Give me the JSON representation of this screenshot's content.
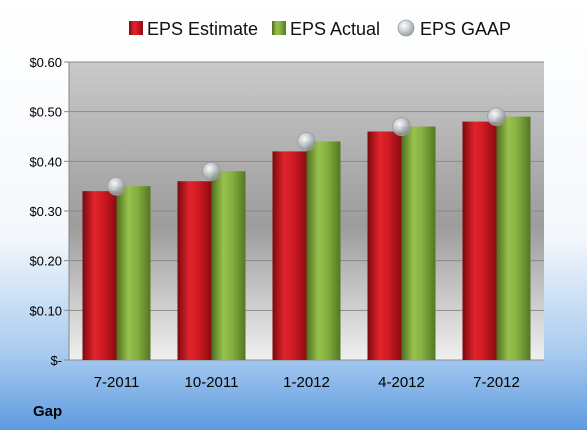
{
  "company": "Gap",
  "chart_data": {
    "type": "bar",
    "categories": [
      "7-2011",
      "10-2011",
      "1-2012",
      "4-2012",
      "7-2012"
    ],
    "series": [
      {
        "name": "EPS Estimate",
        "style": "bar",
        "color": "#C0141C",
        "values": [
          0.34,
          0.36,
          0.42,
          0.46,
          0.48
        ]
      },
      {
        "name": "EPS Actual",
        "style": "bar",
        "color": "#7FA33A",
        "values": [
          0.35,
          0.38,
          0.44,
          0.47,
          0.49
        ]
      },
      {
        "name": "EPS GAAP",
        "style": "marker",
        "color": "#B8BCC2",
        "values": [
          0.35,
          0.38,
          0.44,
          0.47,
          0.49
        ]
      }
    ],
    "y_ticks": [
      {
        "value": 0,
        "label": "$-"
      },
      {
        "value": 0.1,
        "label": "$0.10"
      },
      {
        "value": 0.2,
        "label": "$0.20"
      },
      {
        "value": 0.3,
        "label": "$0.30"
      },
      {
        "value": 0.4,
        "label": "$0.40"
      },
      {
        "value": 0.5,
        "label": "$0.50"
      },
      {
        "value": 0.6,
        "label": "$0.60"
      }
    ],
    "ylim": [
      0,
      0.6
    ],
    "grid": true,
    "legend_position": "top",
    "title": "",
    "xlabel": "",
    "ylabel": ""
  }
}
